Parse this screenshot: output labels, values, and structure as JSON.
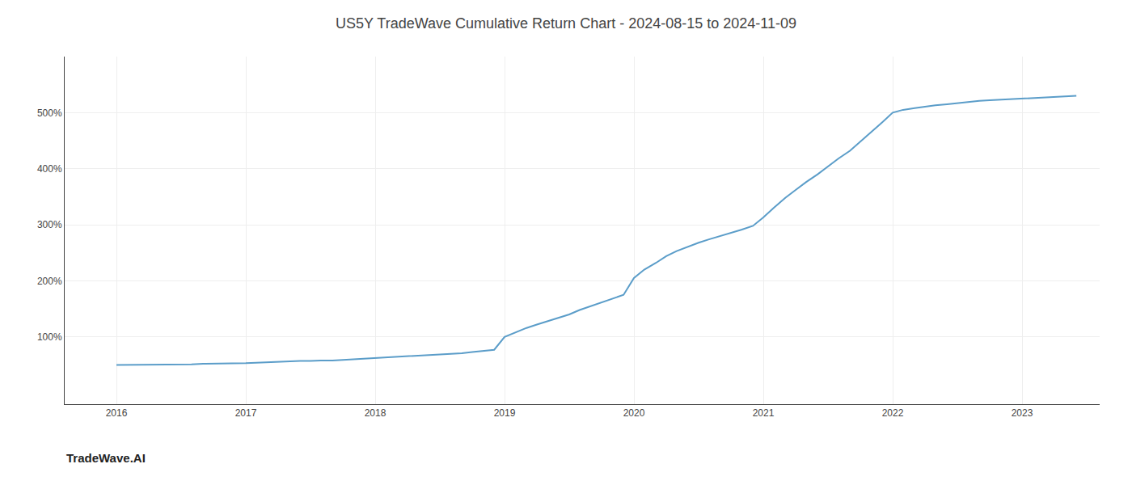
{
  "chart_data": {
    "type": "line",
    "title": "US5Y TradeWave Cumulative Return Chart - 2024-08-15 to 2024-11-09",
    "annotations": [
      {
        "text": "TradeWave.AI"
      }
    ],
    "color": "#5b9dc9",
    "grid": true,
    "xlim": [
      2015.6,
      2023.6
    ],
    "ylim": [
      -20,
      600
    ],
    "xticks": [
      2016,
      2017,
      2018,
      2019,
      2020,
      2021,
      2022,
      2023
    ],
    "yticks": [
      {
        "value": 100,
        "label": "100%"
      },
      {
        "value": 200,
        "label": "200%"
      },
      {
        "value": 300,
        "label": "300%"
      },
      {
        "value": 400,
        "label": "400%"
      },
      {
        "value": 500,
        "label": "500%"
      }
    ],
    "x": [
      2016.0,
      2016.08,
      2016.17,
      2016.25,
      2016.33,
      2016.42,
      2016.5,
      2016.58,
      2016.67,
      2016.75,
      2016.83,
      2016.92,
      2017.0,
      2017.08,
      2017.17,
      2017.25,
      2017.33,
      2017.42,
      2017.5,
      2017.58,
      2017.67,
      2017.75,
      2017.83,
      2017.92,
      2018.0,
      2018.08,
      2018.17,
      2018.25,
      2018.33,
      2018.42,
      2018.5,
      2018.58,
      2018.67,
      2018.75,
      2018.83,
      2018.92,
      2019.0,
      2019.08,
      2019.17,
      2019.25,
      2019.33,
      2019.42,
      2019.5,
      2019.58,
      2019.67,
      2019.75,
      2019.83,
      2019.92,
      2020.0,
      2020.08,
      2020.17,
      2020.25,
      2020.33,
      2020.42,
      2020.5,
      2020.58,
      2020.67,
      2020.75,
      2020.83,
      2020.92,
      2021.0,
      2021.08,
      2021.17,
      2021.25,
      2021.33,
      2021.42,
      2021.5,
      2021.58,
      2021.67,
      2021.75,
      2021.83,
      2021.92,
      2022.0,
      2022.08,
      2022.17,
      2022.25,
      2022.33,
      2022.42,
      2022.5,
      2022.58,
      2022.67,
      2022.75,
      2022.83,
      2022.92,
      2023.0,
      2023.08,
      2023.17,
      2023.25,
      2023.33,
      2023.42
    ],
    "values": [
      50,
      50,
      50,
      50,
      51,
      51,
      51,
      51,
      52,
      52,
      52,
      53,
      53,
      54,
      55,
      55,
      56,
      57,
      57,
      58,
      58,
      59,
      60,
      61,
      62,
      63,
      64,
      65,
      66,
      67,
      68,
      70,
      71,
      73,
      75,
      77,
      100,
      108,
      116,
      122,
      128,
      134,
      140,
      148,
      155,
      162,
      168,
      175,
      205,
      220,
      232,
      244,
      253,
      261,
      268,
      274,
      280,
      286,
      291,
      298,
      313,
      330,
      348,
      362,
      376,
      390,
      404,
      418,
      432,
      448,
      465,
      483,
      500,
      505,
      508,
      511,
      513,
      515,
      517,
      519,
      521,
      522,
      523,
      524,
      525,
      526,
      527,
      528,
      529,
      530
    ]
  }
}
